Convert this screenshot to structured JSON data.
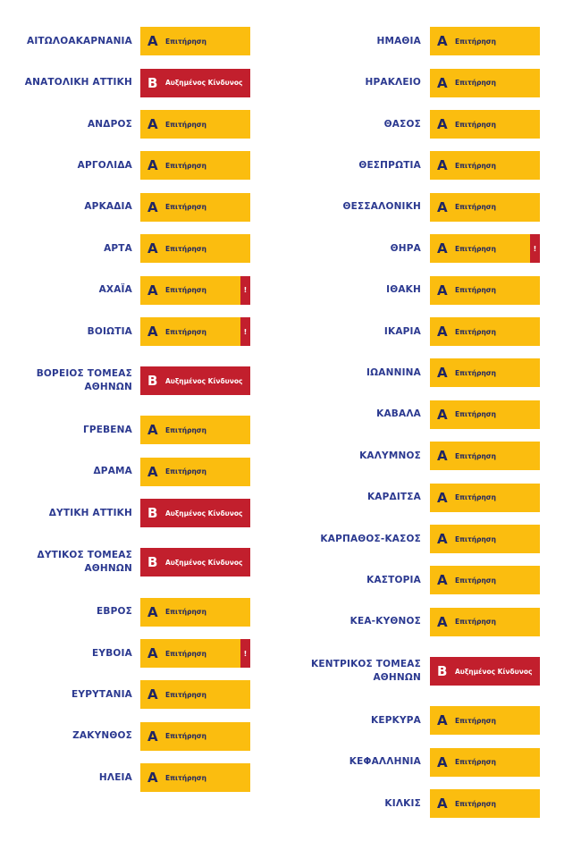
{
  "columns": [
    {
      "rows": [
        {
          "name": [
            "ΑΙΤΩΛΟΑΚΑΡΝΑΝΙΑ"
          ],
          "level": "Α",
          "status": "Επιτήρηση"
        },
        {
          "name": [
            "ΑΝΑΤΟΛΙΚΗ ΑΤΤΙΚΗ"
          ],
          "level": "Β",
          "status": "Αυξημένος Κίνδυνος"
        },
        {
          "name": [
            "ΑΝΔΡΟΣ"
          ],
          "level": "Α",
          "status": "Επιτήρηση"
        },
        {
          "name": [
            "ΑΡΓΟΛΙΔΑ"
          ],
          "level": "Α",
          "status": "Επιτήρηση"
        },
        {
          "name": [
            "ΑΡΚΑΔΙΑ"
          ],
          "level": "Α",
          "status": "Επιτήρηση"
        },
        {
          "name": [
            "ΑΡΤΑ"
          ],
          "level": "Α",
          "status": "Επιτήρηση"
        },
        {
          "name": [
            "ΑΧΑΪΑ"
          ],
          "level": "Α",
          "status": "Επιτήρηση",
          "alert": "!"
        },
        {
          "name": [
            "ΒΟΙΩΤΙΑ"
          ],
          "level": "Α",
          "status": "Επιτήρηση",
          "alert": "!"
        },
        {
          "name": [
            "ΒΟΡΕΙΟΣ ΤΟΜΕΑΣ",
            "ΑΘΗΝΩΝ"
          ],
          "level": "Β",
          "status": "Αυξημένος Κίνδυνος"
        },
        {
          "name": [
            "ΓΡΕΒΕΝΑ"
          ],
          "level": "Α",
          "status": "Επιτήρηση"
        },
        {
          "name": [
            "ΔΡΑΜΑ"
          ],
          "level": "Α",
          "status": "Επιτήρηση"
        },
        {
          "name": [
            "ΔΥΤΙΚΗ ΑΤΤΙΚΗ"
          ],
          "level": "Β",
          "status": "Αυξημένος Κίνδυνος"
        },
        {
          "name": [
            "ΔΥΤΙΚΟΣ ΤΟΜΕΑΣ",
            "ΑΘΗΝΩΝ"
          ],
          "level": "Β",
          "status": "Αυξημένος Κίνδυνος"
        },
        {
          "name": [
            "ΕΒΡΟΣ"
          ],
          "level": "Α",
          "status": "Επιτήρηση"
        },
        {
          "name": [
            "ΕΥΒΟΙΑ"
          ],
          "level": "Α",
          "status": "Επιτήρηση",
          "alert": "!"
        },
        {
          "name": [
            "ΕΥΡΥΤΑΝΙΑ"
          ],
          "level": "Α",
          "status": "Επιτήρηση"
        },
        {
          "name": [
            "ΖΑΚΥΝΘΟΣ"
          ],
          "level": "Α",
          "status": "Επιτήρηση"
        },
        {
          "name": [
            "ΗΛΕΙΑ"
          ],
          "level": "Α",
          "status": "Επιτήρηση"
        }
      ]
    },
    {
      "rows": [
        {
          "name": [
            "ΗΜΑΘΙΑ"
          ],
          "level": "Α",
          "status": "Επιτήρηση"
        },
        {
          "name": [
            "ΗΡΑΚΛΕΙΟ"
          ],
          "level": "Α",
          "status": "Επιτήρηση"
        },
        {
          "name": [
            "ΘΑΣΟΣ"
          ],
          "level": "Α",
          "status": "Επιτήρηση"
        },
        {
          "name": [
            "ΘΕΣΠΡΩΤΙΑ"
          ],
          "level": "Α",
          "status": "Επιτήρηση"
        },
        {
          "name": [
            "ΘΕΣΣΑΛΟΝΙΚΗ"
          ],
          "level": "Α",
          "status": "Επιτήρηση"
        },
        {
          "name": [
            "ΘΗΡΑ"
          ],
          "level": "Α",
          "status": "Επιτήρηση",
          "alert": "!"
        },
        {
          "name": [
            "ΙΘΑΚΗ"
          ],
          "level": "Α",
          "status": "Επιτήρηση"
        },
        {
          "name": [
            "ΙΚΑΡΙΑ"
          ],
          "level": "Α",
          "status": "Επιτήρηση"
        },
        {
          "name": [
            "ΙΩΑΝΝΙΝΑ"
          ],
          "level": "Α",
          "status": "Επιτήρηση"
        },
        {
          "name": [
            "ΚΑΒΑΛΑ"
          ],
          "level": "Α",
          "status": "Επιτήρηση"
        },
        {
          "name": [
            "ΚΑΛΥΜΝΟΣ"
          ],
          "level": "Α",
          "status": "Επιτήρηση"
        },
        {
          "name": [
            "ΚΑΡΔΙΤΣΑ"
          ],
          "level": "Α",
          "status": "Επιτήρηση"
        },
        {
          "name": [
            "ΚΑΡΠΑΘΟΣ-ΚΑΣΟΣ"
          ],
          "level": "Α",
          "status": "Επιτήρηση"
        },
        {
          "name": [
            "ΚΑΣΤΟΡΙΑ"
          ],
          "level": "Α",
          "status": "Επιτήρηση"
        },
        {
          "name": [
            "ΚΕΑ-ΚΥΘΝΟΣ"
          ],
          "level": "Α",
          "status": "Επιτήρηση"
        },
        {
          "name": [
            "ΚΕΝΤΡΙΚΟΣ ΤΟΜΕΑΣ",
            "ΑΘΗΝΩΝ"
          ],
          "level": "Β",
          "status": "Αυξημένος Κίνδυνος"
        },
        {
          "name": [
            "ΚΕΡΚΥΡΑ"
          ],
          "level": "Α",
          "status": "Επιτήρηση"
        },
        {
          "name": [
            "ΚΕΦΑΛΛΗΝΙΑ"
          ],
          "level": "Α",
          "status": "Επιτήρηση"
        },
        {
          "name": [
            "ΚΙΛΚΙΣ"
          ],
          "level": "Α",
          "status": "Επιτήρηση"
        }
      ]
    }
  ]
}
